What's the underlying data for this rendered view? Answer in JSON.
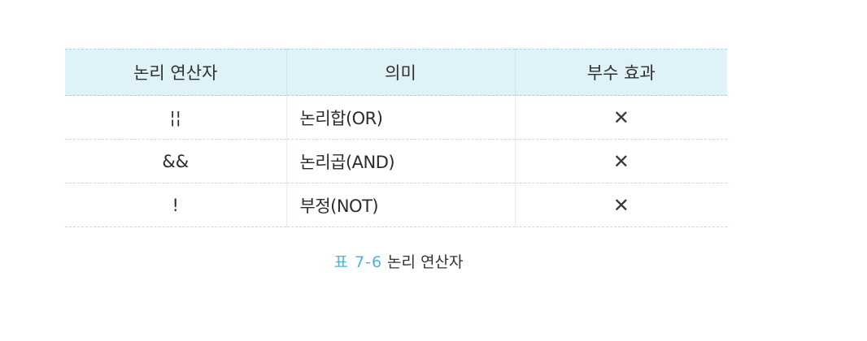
{
  "table": {
    "headers": [
      "논리 연산자",
      "의미",
      "부수 효과"
    ],
    "rows": [
      {
        "operator": "¦¦",
        "meaning": "논리합(OR)",
        "side_effect": "✕"
      },
      {
        "operator": "&&",
        "meaning": "논리곱(AND)",
        "side_effect": "✕"
      },
      {
        "operator": "!",
        "meaning": "부정(NOT)",
        "side_effect": "✕"
      }
    ]
  },
  "caption": {
    "number": "표 7-6",
    "text": "논리 연산자"
  },
  "colors": {
    "header_bg": "#def2f8",
    "accent": "#4fb3d9"
  }
}
